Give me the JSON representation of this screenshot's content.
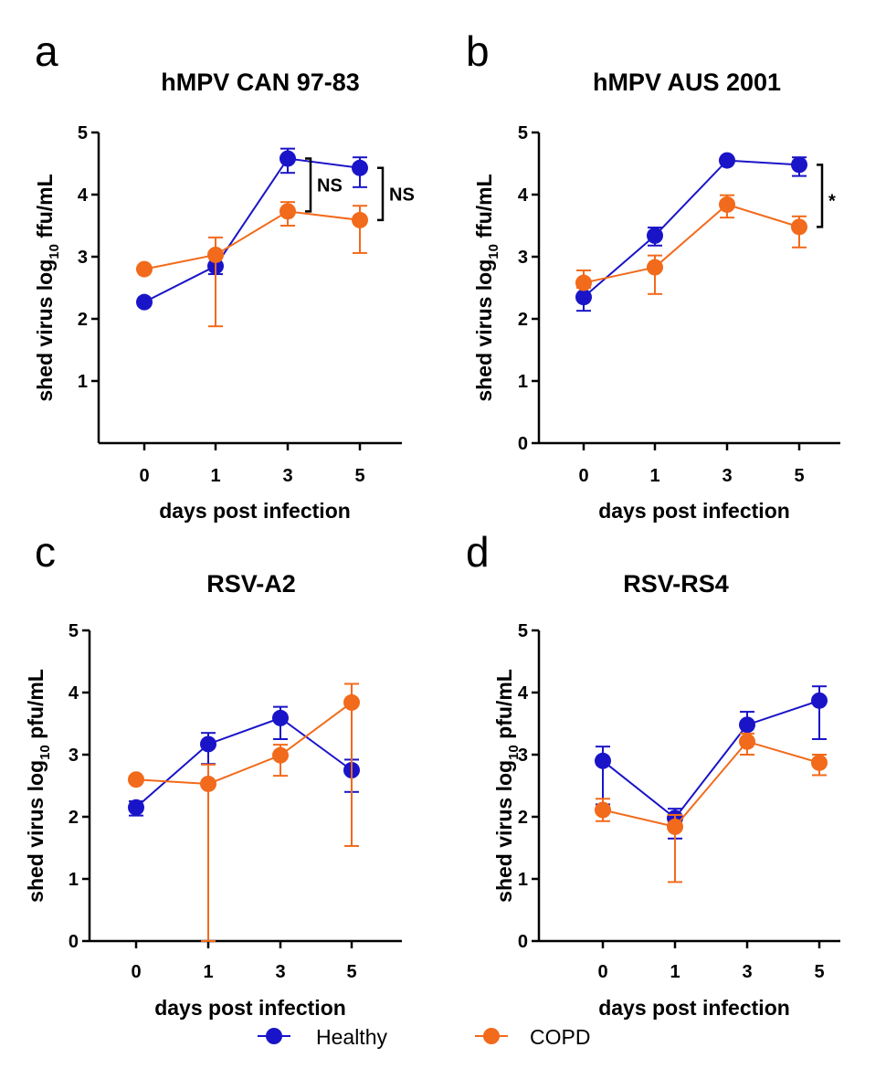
{
  "figure": {
    "legend": [
      {
        "label": "Healthy",
        "color": "#1a14c8"
      },
      {
        "label": "COPD",
        "color": "#f26a1b"
      }
    ]
  },
  "chart_data": [
    {
      "panel": "a",
      "type": "line",
      "title": "hMPV CAN 97-83",
      "xlabel": "days post infection",
      "ylabel_main": "shed virus log",
      "ylabel_sub": "10",
      "ylabel_unit": " ffu/mL",
      "categories": [
        "0",
        "1",
        "3",
        "5"
      ],
      "ylim": [
        0,
        5
      ],
      "yticks": [
        "1",
        "2",
        "3",
        "4",
        "5"
      ],
      "series": [
        {
          "name": "Healthy",
          "color": "#1a14c8",
          "values": [
            2.27,
            2.85,
            4.58,
            4.43
          ],
          "err_low": [
            2.27,
            2.72,
            4.35,
            4.12
          ],
          "err_high": [
            2.27,
            2.98,
            4.74,
            4.6
          ]
        },
        {
          "name": "COPD",
          "color": "#f26a1b",
          "values": [
            2.8,
            3.03,
            3.73,
            3.59
          ],
          "err_low": [
            2.8,
            1.88,
            3.5,
            3.06
          ],
          "err_high": [
            2.8,
            3.31,
            3.88,
            3.82
          ]
        }
      ],
      "annotations": [
        {
          "text": "NS",
          "category": "3",
          "from": 3.73,
          "to": 4.58
        },
        {
          "text": "NS",
          "category": "5",
          "from": 3.59,
          "to": 4.43
        }
      ]
    },
    {
      "panel": "b",
      "type": "line",
      "title": "hMPV AUS 2001",
      "xlabel": "days post infection",
      "ylabel_main": "shed virus log",
      "ylabel_sub": "10",
      "ylabel_unit": " ffu/mL",
      "categories": [
        "0",
        "1",
        "3",
        "5"
      ],
      "ylim": [
        0,
        5
      ],
      "yticks": [
        "0",
        "1",
        "2",
        "3",
        "4",
        "5"
      ],
      "series": [
        {
          "name": "Healthy",
          "color": "#1a14c8",
          "values": [
            2.35,
            3.34,
            4.55,
            4.48
          ],
          "err_low": [
            2.13,
            3.18,
            4.55,
            4.3
          ],
          "err_high": [
            2.5,
            3.47,
            4.55,
            4.6
          ]
        },
        {
          "name": "COPD",
          "color": "#f26a1b",
          "values": [
            2.58,
            2.83,
            3.84,
            3.48
          ],
          "err_low": [
            2.5,
            2.4,
            3.63,
            3.15
          ],
          "err_high": [
            2.78,
            3.02,
            3.99,
            3.65
          ]
        }
      ],
      "annotations": [
        {
          "text": "*",
          "category": "5",
          "from": 3.48,
          "to": 4.48
        }
      ]
    },
    {
      "panel": "c",
      "type": "line",
      "title": "RSV-A2",
      "xlabel": "days post infection",
      "ylabel_main": "shed virus log",
      "ylabel_sub": "10",
      "ylabel_unit": " pfu/mL",
      "categories": [
        "0",
        "1",
        "3",
        "5"
      ],
      "ylim": [
        0,
        5
      ],
      "yticks": [
        "0",
        "1",
        "2",
        "3",
        "4",
        "5"
      ],
      "series": [
        {
          "name": "Healthy",
          "color": "#1a14c8",
          "values": [
            2.15,
            3.17,
            3.59,
            2.75
          ],
          "err_low": [
            2.02,
            2.85,
            3.25,
            2.4
          ],
          "err_high": [
            2.25,
            3.35,
            3.77,
            2.92
          ]
        },
        {
          "name": "COPD",
          "color": "#f26a1b",
          "values": [
            2.6,
            2.53,
            2.99,
            3.84
          ],
          "err_low": [
            2.6,
            0.0,
            2.66,
            1.53
          ],
          "err_high": [
            2.6,
            2.84,
            3.16,
            4.14
          ]
        }
      ],
      "annotations": []
    },
    {
      "panel": "d",
      "type": "line",
      "title": "RSV-RS4",
      "xlabel": "days post infection",
      "ylabel_main": "shed virus log",
      "ylabel_sub": "10",
      "ylabel_unit": " pfu/mL",
      "categories": [
        "0",
        "1",
        "3",
        "5"
      ],
      "ylim": [
        0,
        5
      ],
      "yticks": [
        "0",
        "1",
        "2",
        "3",
        "4",
        "5"
      ],
      "series": [
        {
          "name": "Healthy",
          "color": "#1a14c8",
          "values": [
            2.9,
            1.98,
            3.48,
            3.87
          ],
          "err_low": [
            2.2,
            1.65,
            3.2,
            3.25
          ],
          "err_high": [
            3.13,
            2.13,
            3.69,
            4.1
          ]
        },
        {
          "name": "COPD",
          "color": "#f26a1b",
          "values": [
            2.11,
            1.84,
            3.21,
            2.87
          ],
          "err_low": [
            1.93,
            0.95,
            3.0,
            2.67
          ],
          "err_high": [
            2.29,
            2.03,
            3.34,
            3.0
          ]
        }
      ],
      "annotations": []
    }
  ]
}
